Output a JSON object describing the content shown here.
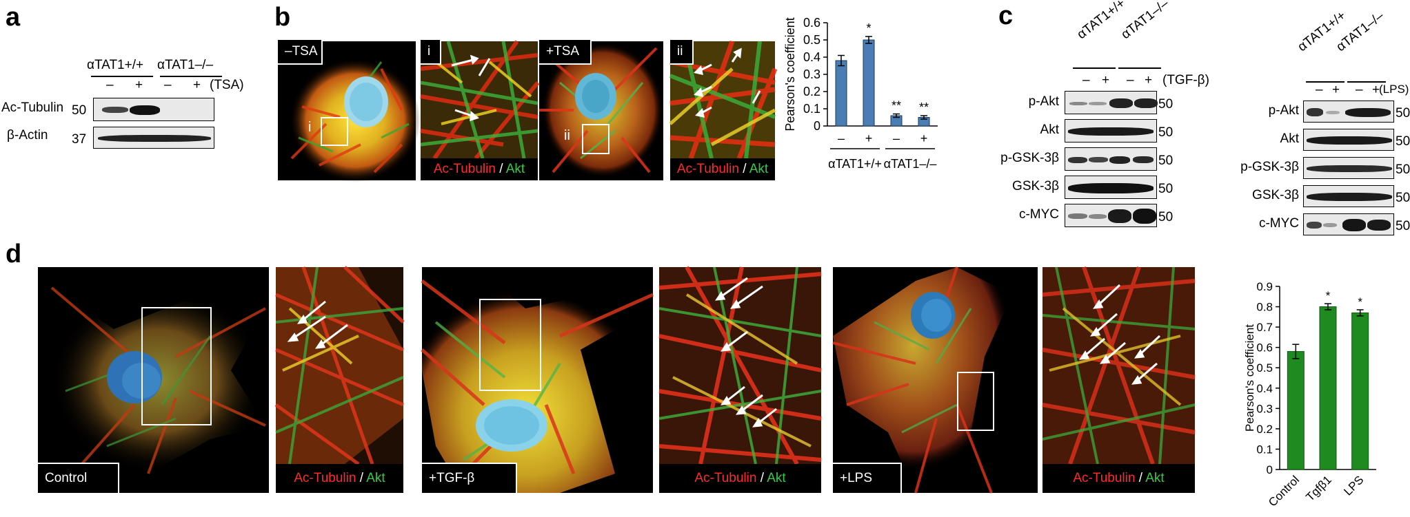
{
  "panels": {
    "a": "a",
    "b": "b",
    "c": "c",
    "d": "d"
  },
  "panel_a": {
    "genotype_wt": "αTAT1+/+",
    "genotype_ko": "αTAT1–/–",
    "signs": [
      "–",
      "+",
      "–",
      "+"
    ],
    "treatment": "(TSA)",
    "rows": [
      {
        "label": "Ac-Tubulin",
        "mw": "50"
      },
      {
        "label": "β-Actin",
        "mw": "37"
      }
    ]
  },
  "panel_b": {
    "minus_tsa": "–TSA",
    "plus_tsa": "+TSA",
    "inset_i": "i",
    "inset_ii": "ii",
    "box_i": "i",
    "box_ii": "ii",
    "caption_red": "Ac-Tubulin",
    "caption_sep": " / ",
    "caption_green": "Akt"
  },
  "panel_c": {
    "left": {
      "genotype_wt": "αTAT1+/+",
      "genotype_ko": "αTAT1–/–",
      "signs": [
        "–",
        "+",
        "–",
        "+"
      ],
      "treatment": "(TGF-β)",
      "rows": [
        {
          "label": "p-Akt",
          "mw": "50"
        },
        {
          "label": "Akt",
          "mw": "50"
        },
        {
          "label": "p-GSK-3β",
          "mw": "50"
        },
        {
          "label": "GSK-3β",
          "mw": "50"
        },
        {
          "label": "c-MYC",
          "mw": "50"
        }
      ]
    },
    "right": {
      "genotype_wt": "αTAT1+/+",
      "genotype_ko": "αTAT1–/–",
      "signs": [
        "–",
        "+",
        "–",
        "+"
      ],
      "treatment": "(LPS)",
      "rows": [
        {
          "label": "p-Akt",
          "mw": "50"
        },
        {
          "label": "Akt",
          "mw": "50"
        },
        {
          "label": "p-GSK-3β",
          "mw": "50"
        },
        {
          "label": "GSK-3β",
          "mw": "50"
        },
        {
          "label": "c-MYC",
          "mw": "50"
        }
      ]
    }
  },
  "panel_d": {
    "control": "Control",
    "tgf": "+TGF-β",
    "lps": "+LPS",
    "caption_red": "Ac-Tubulin",
    "caption_sep": " / ",
    "caption_green": "Akt"
  },
  "chart_data": [
    {
      "type": "bar",
      "panel": "b",
      "categories": [
        "–",
        "+",
        "–",
        "+"
      ],
      "group_labels": [
        "αTAT1+/+",
        "αTAT1–/–"
      ],
      "values": [
        0.38,
        0.5,
        0.06,
        0.05
      ],
      "errors": [
        0.03,
        0.02,
        0.01,
        0.01
      ],
      "significance": [
        "",
        "*",
        "**",
        "**"
      ],
      "ylabel": "Pearson's coefficient",
      "ylim": [
        0,
        0.6
      ],
      "yticks": [
        "0",
        "0.1",
        "0.2",
        "0.3",
        "0.4",
        "0.5",
        "0.6"
      ],
      "color": "#4a7db3"
    },
    {
      "type": "bar",
      "panel": "d",
      "categories": [
        "Control",
        "Tgfβ1",
        "LPS"
      ],
      "values": [
        0.58,
        0.8,
        0.77
      ],
      "errors": [
        0.035,
        0.015,
        0.015
      ],
      "significance": [
        "",
        "*",
        "*"
      ],
      "ylabel": "Pearson's coefficient",
      "ylim": [
        0,
        0.9
      ],
      "yticks": [
        "0",
        "0.1",
        "0.2",
        "0.3",
        "0.4",
        "0.5",
        "0.6",
        "0.7",
        "0.8",
        "0.9"
      ],
      "color": "#1f8a1f"
    }
  ]
}
